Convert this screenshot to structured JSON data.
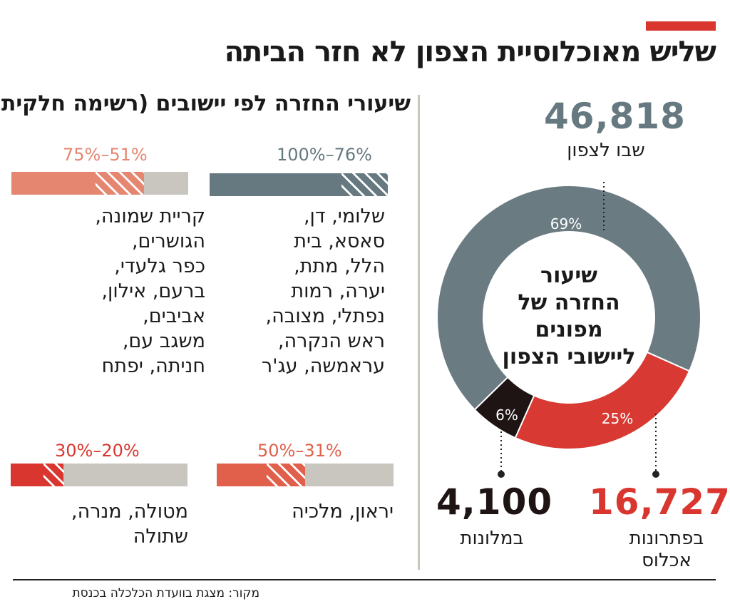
{
  "title": "שליש מאוכלוסיית הצפון לא חזר הביתה",
  "subtitle": "שיעורי החזרה לפי יישובים (רשימה חלקית)",
  "source": "מקור: מצגת בוועדת הכלכלה בכנסת",
  "colors": {
    "accent": "#d9362f",
    "slate": "#667980",
    "salmon": "#e58670",
    "coral": "#e0604c",
    "red": "#d9362f",
    "grey": "#c8c6bf",
    "black": "#1f1414"
  },
  "groups": [
    {
      "range": "100%–76%",
      "fill_pct": 100,
      "towns": "שלומי, דן,\nסאסא, בית\nהלל, מתת,\nיערה, רמות\nנפתלי, מצובה,\nראש הנקרה,\nעראמשה, עג'ר"
    },
    {
      "range": "75%–51%",
      "fill_pct": 75,
      "towns": "קריית שמונה,\nהגושרים,\nכפר גלעדי,\nברעם, אילון,\nאביבים,\nמשגב עם,\nחניתה, יפתח"
    },
    {
      "range": "50%–31%",
      "fill_pct": 50,
      "towns": "יראון, מלכיה"
    },
    {
      "range": "30%–20%",
      "fill_pct": 30,
      "towns": "מטולה, מנרה,\nשתולה"
    }
  ],
  "chart_data": {
    "type": "pie",
    "title": "שיעור החזרה של מפונים ליישובי הצפון",
    "slices": [
      {
        "label": "שבו לצפון",
        "value": 69,
        "count": "46,818",
        "color": "#6a7b82"
      },
      {
        "label": "בפתרונות אכלוס",
        "value": 25,
        "count": "16,727",
        "color": "#d83a33"
      },
      {
        "label": "במלונות",
        "value": 6,
        "count": "4,100",
        "color": "#1f1414"
      }
    ],
    "center_text": "שיעור\nהחזרה של\nמפונים\nליישובי הצפון"
  }
}
